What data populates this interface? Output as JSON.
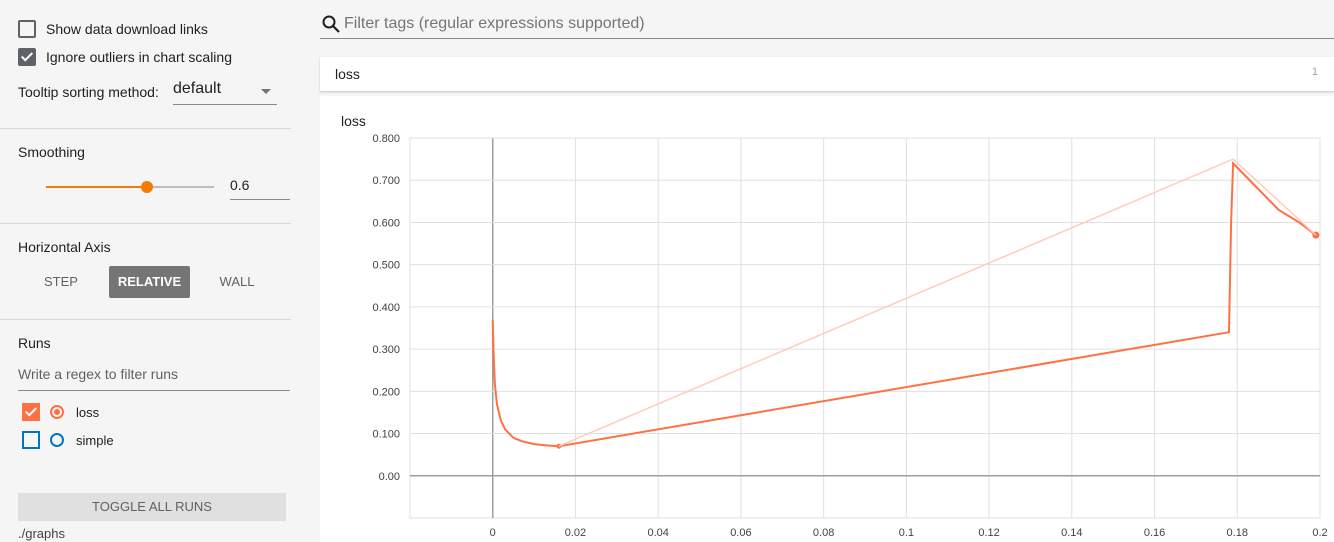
{
  "sidebar": {
    "show_download_links": {
      "label": "Show data download links",
      "checked": false
    },
    "ignore_outliers": {
      "label": "Ignore outliers in chart scaling",
      "checked": true
    },
    "tooltip_sort": {
      "label": "Tooltip sorting method:",
      "value": "default"
    },
    "smoothing": {
      "title": "Smoothing",
      "value": "0.6",
      "fraction": 0.6
    },
    "horizontal_axis": {
      "title": "Horizontal Axis",
      "options": [
        "STEP",
        "RELATIVE",
        "WALL"
      ],
      "selected": "RELATIVE"
    },
    "runs": {
      "title": "Runs",
      "filter_placeholder": "Write a regex to filter runs",
      "items": [
        {
          "name": "loss",
          "checked": true,
          "color": "#ff7043"
        },
        {
          "name": "simple",
          "checked": false,
          "color": "#0077bb"
        }
      ],
      "toggle_label": "TOGGLE ALL RUNS",
      "path": "./graphs"
    }
  },
  "main": {
    "filter_placeholder": "Filter tags (regular expressions supported)",
    "card": {
      "title": "loss",
      "count": "1"
    }
  },
  "colors": {
    "accent": "#f57c00",
    "series": "#ff7043",
    "series_light": "#ffccbc"
  },
  "icons": {
    "search": "search-icon"
  },
  "chart_data": {
    "type": "line",
    "title": "loss",
    "xlabel": "",
    "ylabel": "",
    "xlim": [
      -0.02,
      0.2
    ],
    "ylim": [
      -0.1,
      0.8
    ],
    "x_ticks": [
      "0",
      "0.02",
      "0.04",
      "0.06",
      "0.08",
      "0.1",
      "0.12",
      "0.14",
      "0.16",
      "0.18",
      "0.2"
    ],
    "y_ticks": [
      "0.00",
      "0.100",
      "0.200",
      "0.300",
      "0.400",
      "0.500",
      "0.600",
      "0.700",
      "0.800"
    ],
    "grid": true,
    "series": [
      {
        "role": "smoothed",
        "x": [
          0,
          0.0002,
          0.0005,
          0.001,
          0.002,
          0.003,
          0.005,
          0.007,
          0.01,
          0.013,
          0.016,
          0.178,
          0.1785,
          0.179,
          0.182,
          0.186,
          0.19,
          0.195,
          0.199
        ],
        "y": [
          0.37,
          0.29,
          0.22,
          0.17,
          0.13,
          0.11,
          0.09,
          0.082,
          0.075,
          0.072,
          0.07,
          0.34,
          0.6,
          0.74,
          0.71,
          0.67,
          0.63,
          0.6,
          0.57
        ]
      },
      {
        "role": "raw",
        "x": [
          0.016,
          0.179,
          0.199
        ],
        "y": [
          0.07,
          0.75,
          0.57
        ]
      }
    ]
  }
}
